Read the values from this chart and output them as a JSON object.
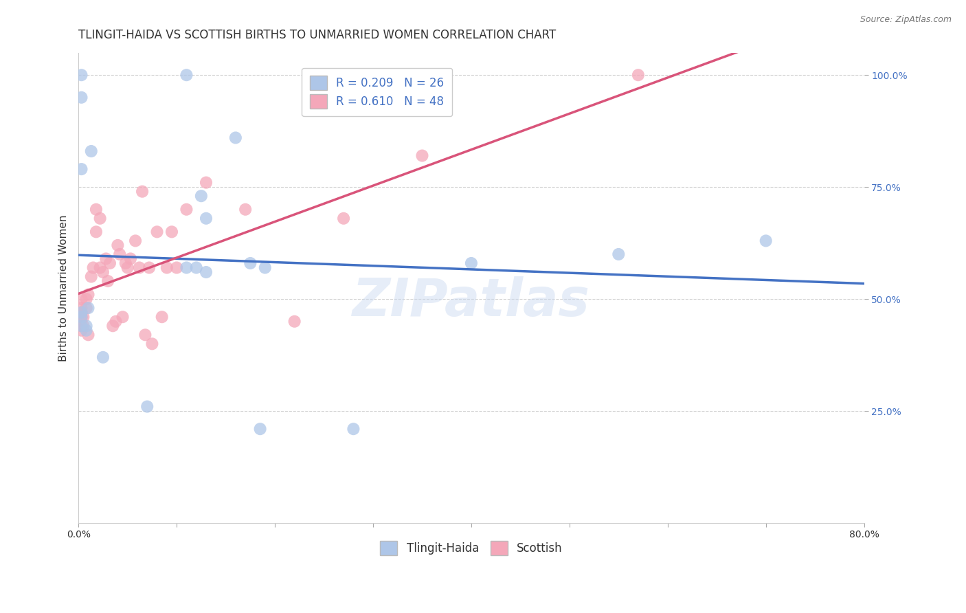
{
  "title": "TLINGIT-HAIDA VS SCOTTISH BIRTHS TO UNMARRIED WOMEN CORRELATION CHART",
  "source": "Source: ZipAtlas.com",
  "ylabel": "Births to Unmarried Women",
  "xlim": [
    0.0,
    0.8
  ],
  "ylim": [
    0.0,
    1.05
  ],
  "ytick_labels": [
    "25.0%",
    "50.0%",
    "75.0%",
    "100.0%"
  ],
  "ytick_positions": [
    0.25,
    0.5,
    0.75,
    1.0
  ],
  "legend_labels": [
    "Tlingit-Haida",
    "Scottish"
  ],
  "tlingit_color": "#aec6e8",
  "scottish_color": "#f4a7b9",
  "tlingit_line_color": "#4472c4",
  "scottish_line_color": "#d9547a",
  "R_tlingit": 0.209,
  "N_tlingit": 26,
  "R_scottish": 0.61,
  "N_scottish": 48,
  "tlingit_x": [
    0.003,
    0.013,
    0.003,
    0.003,
    0.003,
    0.008,
    0.008,
    0.01,
    0.025,
    0.07,
    0.11,
    0.12,
    0.13,
    0.16,
    0.175,
    0.185,
    0.28,
    0.003,
    0.003,
    0.11,
    0.125,
    0.13,
    0.19,
    0.4,
    0.55,
    0.7
  ],
  "tlingit_y": [
    0.47,
    0.83,
    0.79,
    0.46,
    0.44,
    0.43,
    0.44,
    0.48,
    0.37,
    0.26,
    0.57,
    0.57,
    0.68,
    0.86,
    0.58,
    0.21,
    0.21,
    1.0,
    0.95,
    1.0,
    0.73,
    0.56,
    0.57,
    0.58,
    0.6,
    0.63
  ],
  "scottish_x": [
    0.003,
    0.003,
    0.003,
    0.003,
    0.003,
    0.003,
    0.005,
    0.005,
    0.008,
    0.008,
    0.01,
    0.01,
    0.013,
    0.015,
    0.018,
    0.018,
    0.022,
    0.022,
    0.025,
    0.028,
    0.03,
    0.032,
    0.035,
    0.038,
    0.04,
    0.042,
    0.045,
    0.048,
    0.05,
    0.053,
    0.058,
    0.062,
    0.065,
    0.068,
    0.072,
    0.075,
    0.08,
    0.085,
    0.09,
    0.095,
    0.1,
    0.11,
    0.13,
    0.17,
    0.22,
    0.27,
    0.35,
    0.57
  ],
  "scottish_y": [
    0.43,
    0.44,
    0.46,
    0.47,
    0.48,
    0.5,
    0.44,
    0.46,
    0.48,
    0.5,
    0.42,
    0.51,
    0.55,
    0.57,
    0.65,
    0.7,
    0.57,
    0.68,
    0.56,
    0.59,
    0.54,
    0.58,
    0.44,
    0.45,
    0.62,
    0.6,
    0.46,
    0.58,
    0.57,
    0.59,
    0.63,
    0.57,
    0.74,
    0.42,
    0.57,
    0.4,
    0.65,
    0.46,
    0.57,
    0.65,
    0.57,
    0.7,
    0.76,
    0.7,
    0.45,
    0.68,
    0.82,
    1.0
  ],
  "watermark": "ZIPatlas",
  "background_color": "#ffffff",
  "grid_color": "#d0d0d0",
  "title_fontsize": 12,
  "axis_label_fontsize": 11,
  "tick_fontsize": 10,
  "legend_fontsize": 12,
  "scatter_size": 170
}
